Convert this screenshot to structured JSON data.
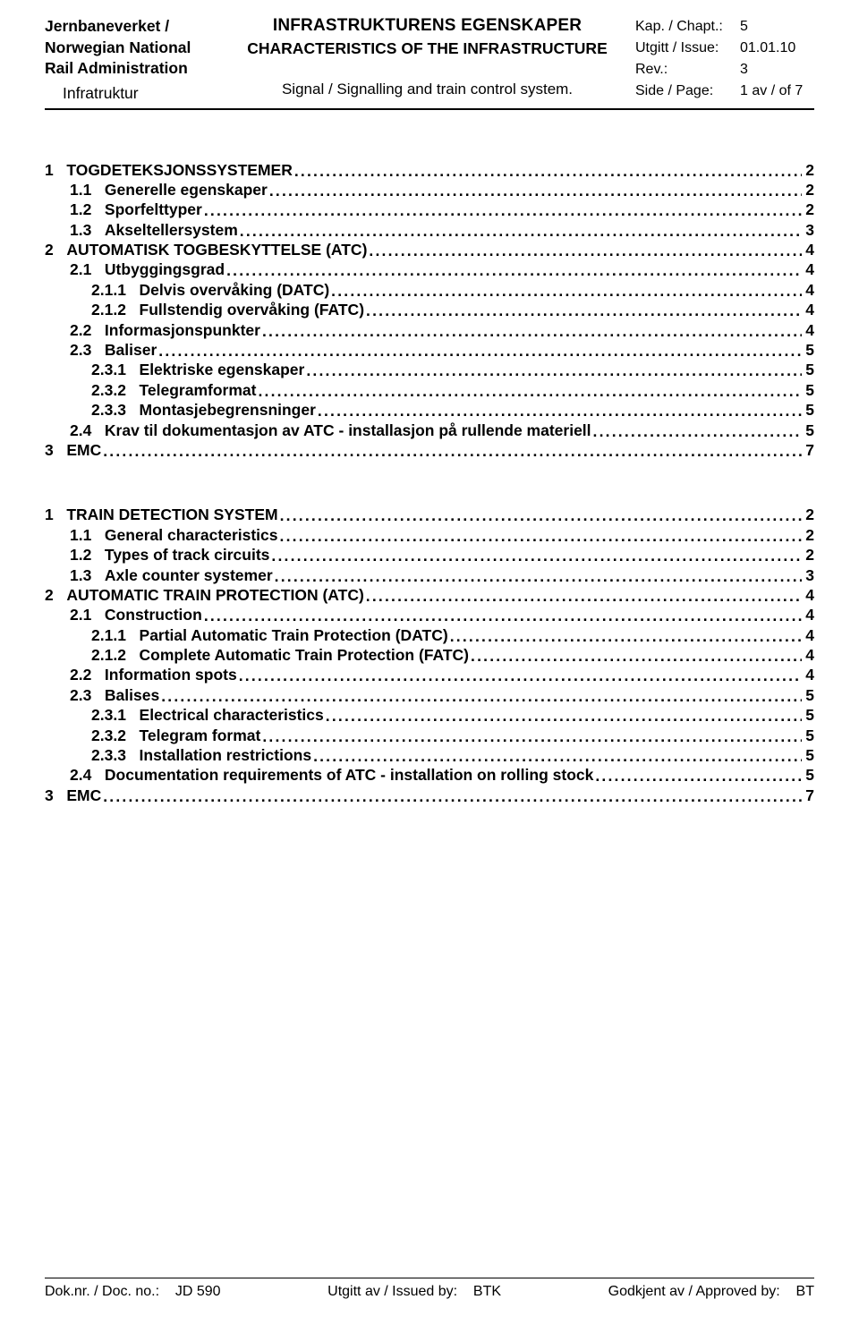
{
  "header": {
    "org1": "Jernbaneverket /",
    "org2": "Norwegian National",
    "org3": "Rail Administration",
    "org4": "Infratruktur",
    "title1": "INFRASTRUKTURENS EGENSKAPER",
    "title2": "CHARACTERISTICS OF THE INFRASTRUCTURE",
    "title3": "Signal / Signalling and train control system.",
    "meta": {
      "chapter_label": "Kap. / Chapt.:",
      "chapter_value": "5",
      "issue_label": "Utgitt / Issue:",
      "issue_value": "01.01.10",
      "rev_label": "Rev.:",
      "rev_value": "3",
      "page_label": "Side / Page:",
      "page_value": "1 av / of 7"
    }
  },
  "toc_no": [
    {
      "lvl": "l1",
      "num": "1   ",
      "title": "TOGDETEKSJONSSYSTEMER",
      "page": "2"
    },
    {
      "lvl": "l2",
      "num": "1.1   ",
      "title": "Generelle egenskaper",
      "page": "2"
    },
    {
      "lvl": "l2",
      "num": "1.2   ",
      "title": "Sporfelttyper",
      "page": "2"
    },
    {
      "lvl": "l2",
      "num": "1.3   ",
      "title": "Akseltellersystem",
      "page": "3"
    },
    {
      "lvl": "l1",
      "num": "2   ",
      "title": "AUTOMATISK TOGBESKYTTELSE (ATC)",
      "page": "4"
    },
    {
      "lvl": "l2",
      "num": "2.1   ",
      "title": "Utbyggingsgrad",
      "page": "4"
    },
    {
      "lvl": "l3",
      "num": "2.1.1   ",
      "title": "Delvis overvåking (DATC)",
      "page": "4"
    },
    {
      "lvl": "l3",
      "num": "2.1.2   ",
      "title": "Fullstendig overvåking (FATC)",
      "page": "4"
    },
    {
      "lvl": "l2",
      "num": "2.2   ",
      "title": "Informasjonspunkter",
      "page": "4"
    },
    {
      "lvl": "l2",
      "num": "2.3   ",
      "title": "Baliser",
      "page": "5"
    },
    {
      "lvl": "l3",
      "num": "2.3.1   ",
      "title": "Elektriske egenskaper",
      "page": "5"
    },
    {
      "lvl": "l3",
      "num": "2.3.2   ",
      "title": "Telegramformat",
      "page": "5"
    },
    {
      "lvl": "l3",
      "num": "2.3.3   ",
      "title": "Montasjebegrensninger",
      "page": "5"
    },
    {
      "lvl": "l2",
      "num": "2.4   ",
      "title": "Krav til dokumentasjon av ATC - installasjon på rullende materiell",
      "page": "5"
    },
    {
      "lvl": "l1",
      "num": "3   ",
      "title": "EMC",
      "page": "7"
    }
  ],
  "toc_en": [
    {
      "lvl": "l1",
      "num": "1   ",
      "title": "TRAIN DETECTION SYSTEM",
      "page": "2"
    },
    {
      "lvl": "l2",
      "num": "1.1   ",
      "title": "General characteristics",
      "page": "2"
    },
    {
      "lvl": "l2",
      "num": "1.2   ",
      "title": "Types of track circuits",
      "page": "2"
    },
    {
      "lvl": "l2",
      "num": "1.3   ",
      "title": "Axle counter systemer",
      "page": "3"
    },
    {
      "lvl": "l1",
      "num": "2   ",
      "title": "AUTOMATIC TRAIN PROTECTION (ATC)",
      "page": "4"
    },
    {
      "lvl": "l2",
      "num": "2.1   ",
      "title": "Construction",
      "page": "4"
    },
    {
      "lvl": "l3",
      "num": "2.1.1   ",
      "title": "Partial Automatic Train Protection (DATC)",
      "page": "4"
    },
    {
      "lvl": "l3",
      "num": "2.1.2   ",
      "title": "Complete Automatic Train Protection (FATC)",
      "page": "4"
    },
    {
      "lvl": "l2",
      "num": "2.2   ",
      "title": "Information spots",
      "page": "4"
    },
    {
      "lvl": "l2",
      "num": "2.3   ",
      "title": "Balises",
      "page": "5"
    },
    {
      "lvl": "l3",
      "num": "2.3.1   ",
      "title": "Electrical characteristics",
      "page": "5"
    },
    {
      "lvl": "l3",
      "num": "2.3.2   ",
      "title": "Telegram format",
      "page": "5"
    },
    {
      "lvl": "l3",
      "num": "2.3.3   ",
      "title": "Installation restrictions",
      "page": "5"
    },
    {
      "lvl": "l2",
      "num": "2.4   ",
      "title": "Documentation requirements of ATC - installation on rolling stock",
      "page": "5"
    },
    {
      "lvl": "l1",
      "num": "3   ",
      "title": "EMC",
      "page": "7"
    }
  ],
  "footer": {
    "doc_label": "Dok.nr. / Doc. no.:",
    "doc_value": "JD 590",
    "issued_label": "Utgitt av / Issued by:",
    "issued_value": "BTK",
    "approved_label": "Godkjent av / Approved by:",
    "approved_value": "BT"
  }
}
